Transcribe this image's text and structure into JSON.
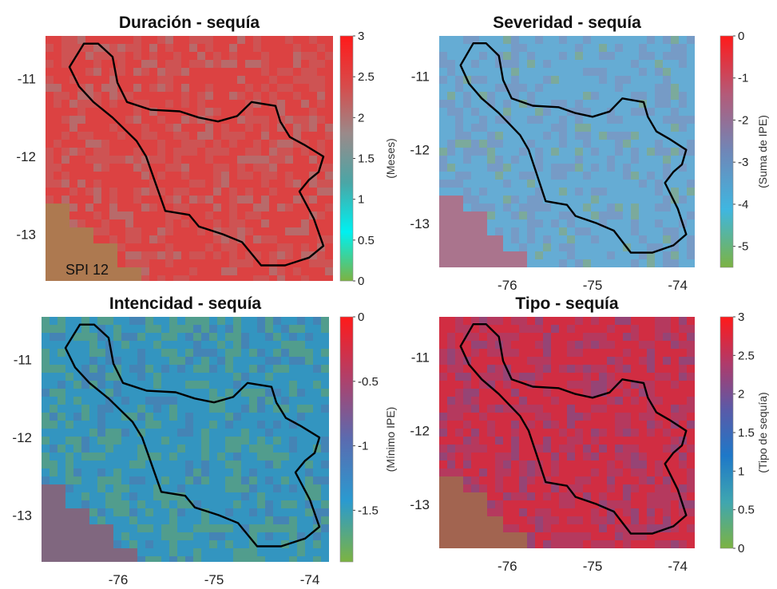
{
  "chart_data": [
    {
      "type": "heatmap",
      "title": "Duración - sequía",
      "colorbar_label": "(Meses)",
      "colorbar_ticks": [
        "3",
        "2.5",
        "2",
        "1.5",
        "1",
        "0.5",
        "0"
      ],
      "clim": [
        0,
        3
      ],
      "colormap": [
        "#7cb342",
        "#00f0f0",
        "#4aa6a6",
        "#9a8a8a",
        "#d84a4a",
        "#ff1a1a"
      ],
      "y_ticks": [
        "-11",
        "-12",
        "-13"
      ],
      "x_ticks": [],
      "annotation": "SPI 12",
      "outside_value": 0,
      "background_color": "#c95a5a"
    },
    {
      "type": "heatmap",
      "title": "Severidad - sequía",
      "colorbar_label": "(Suma de IPE)",
      "colorbar_ticks": [
        "0",
        "-1",
        "-2",
        "-3",
        "-4",
        "-5"
      ],
      "clim": [
        -5.5,
        0
      ],
      "colormap": [
        "#7cb342",
        "#3fb6e0",
        "#6f87b8",
        "#b45a78",
        "#ff1a1a"
      ],
      "y_ticks": [
        "-11",
        "-12",
        "-13"
      ],
      "x_ticks": [
        "-76",
        "-75",
        "-74"
      ],
      "outside_value": 0,
      "background_color": "#7aa6cf"
    },
    {
      "type": "heatmap",
      "title": "Intencidad - sequía",
      "colorbar_label": "(Mínimo IPE)",
      "colorbar_ticks": [
        "0",
        "-0.5",
        "-1",
        "-1.5"
      ],
      "clim": [
        -1.9,
        0
      ],
      "colormap": [
        "#7cb342",
        "#2a9ad0",
        "#5a6bb0",
        "#b0406a",
        "#ff1a1a"
      ],
      "y_ticks": [
        "-11",
        "-12",
        "-13"
      ],
      "x_ticks": [
        "-76",
        "-75",
        "-74"
      ],
      "outside_value": 0,
      "background_color": "#3a92b8"
    },
    {
      "type": "heatmap",
      "title": "Tipo - sequía",
      "colorbar_label": "(Tipo de sequía)",
      "colorbar_ticks": [
        "3",
        "2.5",
        "2",
        "1.5",
        "1",
        "0.5",
        "0"
      ],
      "clim": [
        0,
        3
      ],
      "colormap": [
        "#7cb342",
        "#3fa6b0",
        "#1e78c8",
        "#5a5aa8",
        "#b03a6a",
        "#ff1a1a"
      ],
      "y_ticks": [
        "-11",
        "-12",
        "-13"
      ],
      "x_ticks": [
        "-76",
        "-75",
        "-74"
      ],
      "outside_value": 0,
      "background_color": "#b8385a"
    }
  ],
  "map_extent": {
    "lon": [
      -76.8,
      -73.8
    ],
    "lat": [
      -13.6,
      -10.45
    ]
  },
  "basin_outline_lonlat": [
    [
      -76.4,
      -10.55
    ],
    [
      -76.25,
      -10.55
    ],
    [
      -76.1,
      -10.72
    ],
    [
      -76.05,
      -11.05
    ],
    [
      -75.95,
      -11.3
    ],
    [
      -75.7,
      -11.4
    ],
    [
      -75.4,
      -11.42
    ],
    [
      -75.2,
      -11.5
    ],
    [
      -75.0,
      -11.55
    ],
    [
      -74.8,
      -11.48
    ],
    [
      -74.65,
      -11.3
    ],
    [
      -74.4,
      -11.35
    ],
    [
      -74.35,
      -11.55
    ],
    [
      -74.25,
      -11.75
    ],
    [
      -74.1,
      -11.85
    ],
    [
      -73.9,
      -12.0
    ],
    [
      -73.95,
      -12.2
    ],
    [
      -74.05,
      -12.3
    ],
    [
      -74.15,
      -12.45
    ],
    [
      -74.0,
      -12.8
    ],
    [
      -73.9,
      -13.15
    ],
    [
      -74.05,
      -13.3
    ],
    [
      -74.3,
      -13.4
    ],
    [
      -74.55,
      -13.4
    ],
    [
      -74.75,
      -13.1
    ],
    [
      -74.95,
      -13.0
    ],
    [
      -75.2,
      -12.9
    ],
    [
      -75.3,
      -12.75
    ],
    [
      -75.55,
      -12.7
    ],
    [
      -75.65,
      -12.35
    ],
    [
      -75.75,
      -12.0
    ],
    [
      -75.85,
      -11.8
    ],
    [
      -76.1,
      -11.5
    ],
    [
      -76.3,
      -11.3
    ],
    [
      -76.45,
      -11.1
    ],
    [
      -76.55,
      -10.85
    ],
    [
      -76.4,
      -10.55
    ]
  ]
}
